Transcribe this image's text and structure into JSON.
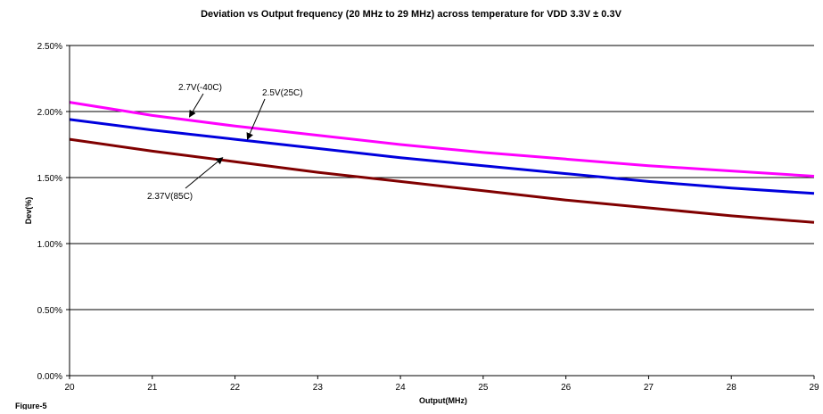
{
  "chart_data": {
    "type": "line",
    "title": "Deviation vs Output frequency (20 MHz to 29 MHz) across temperature for VDD 3.3V ± 0.3V",
    "xlabel": "Output(MHz)",
    "ylabel": "Dev(%)",
    "figure_label": "Figure-5",
    "xlim": [
      20,
      29
    ],
    "ylim": [
      0,
      2.5
    ],
    "x_ticks": [
      20,
      21,
      22,
      23,
      24,
      25,
      26,
      27,
      28,
      29
    ],
    "x_tick_labels": [
      "20",
      "21",
      "22",
      "23",
      "24",
      "25",
      "26",
      "27",
      "28",
      "29"
    ],
    "y_ticks": [
      0,
      0.5,
      1.0,
      1.5,
      2.0,
      2.5
    ],
    "y_tick_labels": [
      "0.00%",
      "0.50%",
      "1.00%",
      "1.50%",
      "2.00%",
      "2.50%"
    ],
    "grid": "horizontal",
    "x": [
      20,
      21,
      22,
      23,
      24,
      25,
      26,
      27,
      28,
      29
    ],
    "series": [
      {
        "color": "#ff00ff",
        "values": [
          2.07,
          1.97,
          1.89,
          1.82,
          1.75,
          1.69,
          1.64,
          1.59,
          1.55,
          1.51
        ]
      },
      {
        "color": "#0000dd",
        "values": [
          1.94,
          1.86,
          1.79,
          1.72,
          1.65,
          1.59,
          1.53,
          1.47,
          1.42,
          1.38
        ]
      },
      {
        "color": "#800000",
        "values": [
          1.79,
          1.7,
          1.62,
          1.54,
          1.47,
          1.4,
          1.33,
          1.27,
          1.21,
          1.16
        ]
      }
    ],
    "annotations": [
      {
        "text": "2.7V(-40C)",
        "target": [
          21.45,
          1.96
        ]
      },
      {
        "text": "2.5V(25C)",
        "target": [
          22.15,
          1.79
        ]
      },
      {
        "text": "2.37V(85C)",
        "target": [
          21.85,
          1.65
        ]
      }
    ]
  }
}
